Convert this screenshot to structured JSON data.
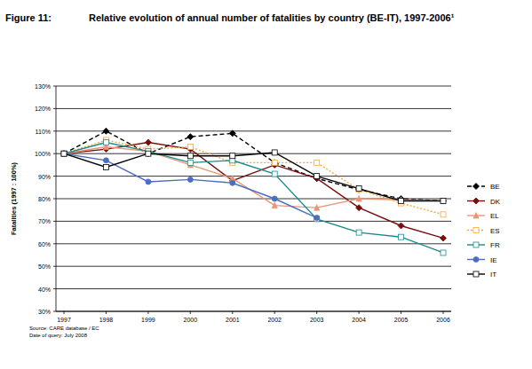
{
  "chart_data": {
    "type": "line",
    "title": "Figure 11:",
    "subtitle": "Relative evolution of annual number of fatalities by country (BE-IT), 1997-2006¹",
    "ylabel": "Fatalities (1997 : 100%)",
    "annotations": [
      "Source: CARE database / EC",
      "Date of query: July 2008"
    ],
    "categories": [
      "1997",
      "1998",
      "1999",
      "2000",
      "2001",
      "2002",
      "2003",
      "2004",
      "2005",
      "2006"
    ],
    "series": [
      {
        "name": "BE",
        "color": "#000000",
        "marker": "diamond",
        "line_style": "dashed",
        "values": [
          100,
          110,
          100,
          107.5,
          109,
          96,
          89,
          84,
          80,
          79
        ]
      },
      {
        "name": "DK",
        "color": "#7a0c0c",
        "marker": "diamond",
        "line_style": "solid",
        "values": [
          100,
          102,
          105,
          102,
          88,
          95,
          89,
          76,
          68,
          62.5
        ]
      },
      {
        "name": "EL",
        "color": "#e8967a",
        "marker": "triangle",
        "line_style": "solid",
        "values": [
          100,
          103,
          101,
          95,
          89,
          77,
          76,
          80,
          79.5,
          79
        ]
      },
      {
        "name": "ES",
        "color": "#f4a93e",
        "marker": "square",
        "line_style": "dotted",
        "values": [
          100,
          106,
          102,
          103,
          96,
          96,
          96,
          84,
          78,
          73
        ]
      },
      {
        "name": "FR",
        "color": "#1a8a8a",
        "marker": "square",
        "line_style": "solid",
        "values": [
          100,
          105,
          101,
          96,
          97,
          91,
          71,
          65,
          63,
          56
        ]
      },
      {
        "name": "IE",
        "color": "#4a6fc0",
        "marker": "circle",
        "line_style": "solid",
        "values": [
          100,
          97,
          87.5,
          88.5,
          87,
          80,
          71.5,
          null,
          null,
          null
        ]
      },
      {
        "name": "IT",
        "color": "#000000",
        "marker": "square",
        "line_style": "solid",
        "values": [
          100,
          94,
          100,
          99,
          99,
          100.5,
          90,
          84.5,
          79,
          79
        ]
      }
    ],
    "ylim": [
      30,
      130
    ],
    "yticks": [
      {
        "value": 30,
        "label": "30%"
      },
      {
        "value": 40,
        "label": "40%"
      },
      {
        "value": 50,
        "label": "50%"
      },
      {
        "value": 60,
        "label": "60%"
      },
      {
        "value": 70,
        "label": "70%"
      },
      {
        "value": 80,
        "label": "80%"
      },
      {
        "value": 90,
        "label": "90%"
      },
      {
        "value": 100,
        "label": "100%"
      },
      {
        "value": 110,
        "label": "110%"
      },
      {
        "value": 120,
        "label": "120%"
      },
      {
        "value": 130,
        "label": "130%"
      }
    ],
    "grid": true,
    "legend": "right"
  }
}
